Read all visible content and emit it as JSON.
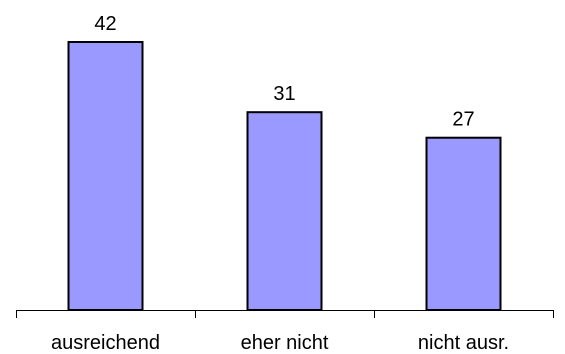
{
  "chart_data": {
    "type": "bar",
    "categories": [
      "ausreichend",
      "eher nicht",
      "nicht ausr."
    ],
    "values": [
      42,
      31,
      27
    ],
    "title": "",
    "xlabel": "",
    "ylabel": "",
    "ylim": [
      0,
      42
    ],
    "grid": false,
    "legend": "none",
    "bar_color": "#9999ff",
    "bar_border_color": "#000000"
  }
}
